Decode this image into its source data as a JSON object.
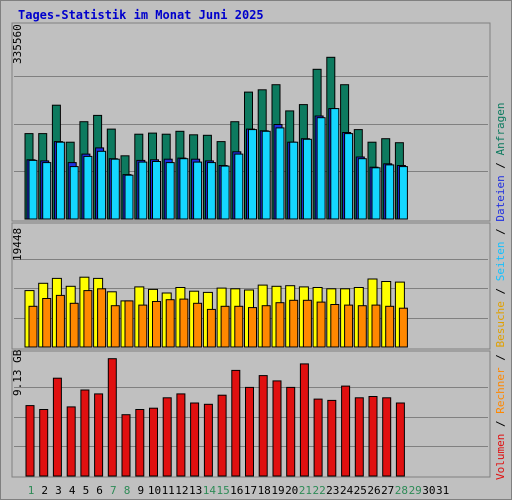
{
  "chart_title": "Tages-Statistik im Monat Juni 2025",
  "colors": {
    "anfragen": "#0d7a5f",
    "dateien": "#1f2fe0",
    "seiten": "#14d7ff",
    "besuche": "#ffff00",
    "rechner": "#ff8800",
    "volumen": "#e01010",
    "weekend_day": "#2e8b57",
    "panel_bg": "#c0c0c0",
    "day_label": "#000000"
  },
  "right_labels": {
    "anfragen": "Anfragen",
    "dateien": "Dateien",
    "seiten": "Seiten",
    "besuche": "Besuche",
    "rechner": "Rechner",
    "volumen": "Volumen",
    "sep": " / "
  },
  "chart_data": [
    {
      "type": "bar",
      "panel": "top",
      "ymax_label": "335560",
      "ylim": [
        0,
        335560
      ],
      "categories": [
        "1",
        "2",
        "3",
        "4",
        "5",
        "6",
        "7",
        "8",
        "9",
        "10",
        "11",
        "12",
        "13",
        "14",
        "15",
        "16",
        "17",
        "18",
        "19",
        "20",
        "21",
        "22",
        "23",
        "24",
        "25",
        "26",
        "27",
        "28",
        "29",
        "30",
        "31"
      ],
      "weekend_days": [
        "1",
        "7",
        "8",
        "14",
        "15",
        "21",
        "22",
        "28",
        "29"
      ],
      "series": [
        {
          "name": "Anfragen",
          "values": [
            150000,
            150000,
            200000,
            135000,
            171000,
            182000,
            158000,
            111000,
            149000,
            151000,
            149000,
            154000,
            148000,
            147000,
            136000,
            171000,
            223000,
            227000,
            236000,
            190000,
            201000,
            263000,
            284000,
            236000,
            157000,
            135000,
            141000,
            134000,
            0,
            0,
            0
          ]
        },
        {
          "name": "Dateien",
          "values": [
            104000,
            102000,
            136000,
            99000,
            114000,
            125000,
            106000,
            78000,
            103000,
            104000,
            105000,
            107000,
            105000,
            102000,
            94000,
            118000,
            158000,
            155000,
            166000,
            135000,
            141000,
            181000,
            194000,
            152000,
            109000,
            91000,
            97000,
            94000,
            0,
            0,
            0
          ]
        },
        {
          "name": "Seiten",
          "values": [
            103000,
            99000,
            135000,
            92000,
            110000,
            119000,
            105000,
            77000,
            100000,
            101000,
            99000,
            106000,
            100000,
            99000,
            93000,
            114000,
            157000,
            154000,
            160000,
            135000,
            140000,
            178000,
            194000,
            150000,
            106000,
            90000,
            95000,
            92000,
            0,
            0,
            0
          ]
        }
      ]
    },
    {
      "type": "bar",
      "panel": "middle",
      "ymax_label": "19448",
      "ylim": [
        0,
        19448
      ],
      "categories": [
        "1",
        "2",
        "3",
        "4",
        "5",
        "6",
        "7",
        "8",
        "9",
        "10",
        "11",
        "12",
        "13",
        "14",
        "15",
        "16",
        "17",
        "18",
        "19",
        "20",
        "21",
        "22",
        "23",
        "24",
        "25",
        "26",
        "27",
        "28",
        "29",
        "30",
        "31"
      ],
      "series": [
        {
          "name": "Besuche",
          "values": [
            9300,
            10500,
            11300,
            10000,
            11500,
            11300,
            9100,
            7600,
            9900,
            9500,
            8900,
            9800,
            9200,
            9000,
            9700,
            9600,
            9400,
            10200,
            10000,
            10100,
            9900,
            9800,
            9600,
            9600,
            9800,
            11200,
            10800,
            10700,
            0,
            0,
            0
          ]
        },
        {
          "name": "Rechner",
          "values": [
            6700,
            8000,
            8500,
            7200,
            9300,
            9600,
            6800,
            7600,
            6900,
            7500,
            7800,
            7900,
            7200,
            6200,
            6700,
            6700,
            6500,
            6800,
            7300,
            7700,
            7700,
            7400,
            7000,
            6900,
            6800,
            6900,
            6700,
            6400,
            0,
            0,
            0
          ]
        }
      ]
    },
    {
      "type": "bar",
      "panel": "bottom",
      "ymax_label": "9.13 GB",
      "ylim": [
        0,
        9.13
      ],
      "categories": [
        "1",
        "2",
        "3",
        "4",
        "5",
        "6",
        "7",
        "8",
        "9",
        "10",
        "11",
        "12",
        "13",
        "14",
        "15",
        "16",
        "17",
        "18",
        "19",
        "20",
        "21",
        "22",
        "23",
        "24",
        "25",
        "26",
        "27",
        "28",
        "29",
        "30",
        "31"
      ],
      "series": [
        {
          "name": "Volumen",
          "values": [
            5.4,
            5.1,
            7.5,
            5.3,
            6.6,
            6.3,
            9.0,
            4.7,
            5.1,
            5.2,
            6.0,
            6.3,
            5.6,
            5.5,
            6.2,
            8.1,
            6.8,
            7.7,
            7.3,
            6.8,
            8.6,
            5.9,
            5.8,
            6.9,
            6.0,
            6.1,
            6.0,
            5.6,
            0,
            0,
            0
          ]
        }
      ]
    }
  ]
}
